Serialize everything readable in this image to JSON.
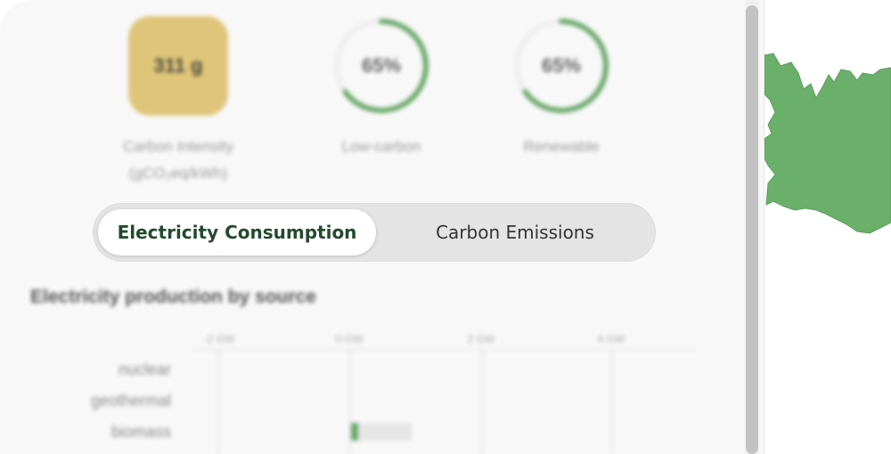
{
  "metrics": {
    "carbon_intensity": {
      "value": "311 g",
      "label_line1": "Carbon Intensity",
      "label_line2": "(gCO₂eq/kWh)"
    },
    "low_carbon": {
      "value": "65%",
      "label": "Low-carbon",
      "percent": 0.65
    },
    "renewable": {
      "value": "65%",
      "label": "Renewable",
      "percent": 0.65
    }
  },
  "toggle": {
    "electricity_label": "Electricity Consumption",
    "emissions_label": "Carbon Emissions",
    "selected": "electricity"
  },
  "production": {
    "title": "Electricity production by source",
    "ticks": [
      "-2 GW",
      "0 GW",
      "2 GW",
      "4 GW"
    ],
    "sources": [
      "nuclear",
      "geothermal",
      "biomass"
    ]
  },
  "colors": {
    "intensity_box": "#dfc57a",
    "ring_green": "#6aa86a",
    "map_green": "#6aaf6a",
    "active_text": "#244a2e"
  },
  "icons": {
    "map_region": "country-shape"
  }
}
